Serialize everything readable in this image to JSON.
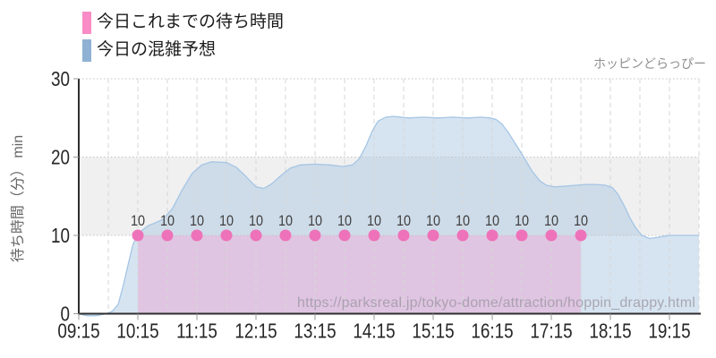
{
  "legend": {
    "items": [
      {
        "label": "今日これまでの待ち時間",
        "color": "#f98cc6"
      },
      {
        "label": "今日の混雑予想",
        "color": "#8fb1d4"
      }
    ]
  },
  "watermark": "ホッピンどらっぴー",
  "url_watermark": "https://parksreal.jp/tokyo-dome/attraction/hoppin_drappy.html",
  "y_axis": {
    "title": "待ち時間（分） min",
    "ticks": [
      0,
      10,
      20,
      30
    ]
  },
  "x_axis": {
    "tick_labels": [
      "09:15",
      "10:15",
      "11:15",
      "12:15",
      "13:15",
      "14:15",
      "15:15",
      "16:15",
      "17:15",
      "18:15",
      "19:15"
    ],
    "tick_minutes": [
      0,
      60,
      120,
      180,
      240,
      300,
      360,
      420,
      480,
      540,
      600
    ]
  },
  "chart_data": {
    "type": "area",
    "title": "",
    "xlabel": "",
    "ylabel": "待ち時間（分） min",
    "ylim": [
      0,
      30
    ],
    "xlim_minutes": [
      0,
      630
    ],
    "x_start_label": "09:15",
    "grid_interval_minutes": 30,
    "band": {
      "from": 10,
      "to": 20,
      "color": "#f0f0f0"
    },
    "colors": {
      "grid_h": "#c3c3c3",
      "grid_v": "#d6d6d6",
      "axis": "#2e2e2e",
      "tick": "#9a9a9a"
    },
    "series": [
      {
        "name": "今日の混雑予想",
        "kind": "area-line",
        "line_color": "#a5c5e5",
        "fill_color": "rgba(165,195,225,0.45)",
        "x_minutes": [
          0,
          8,
          18,
          28,
          34,
          40,
          45,
          50,
          55,
          60,
          70,
          85,
          95,
          105,
          115,
          125,
          135,
          150,
          160,
          170,
          180,
          188,
          196,
          205,
          215,
          225,
          240,
          255,
          268,
          278,
          285,
          292,
          298,
          304,
          312,
          320,
          335,
          350,
          365,
          380,
          395,
          408,
          418,
          424,
          430,
          437,
          444,
          452,
          460,
          468,
          475,
          483,
          495,
          505,
          515,
          525,
          535,
          542,
          548,
          554,
          560,
          566,
          572,
          580,
          590,
          600,
          615,
          630
        ],
        "values": [
          0,
          -0.25,
          -0.25,
          0,
          0.3,
          1.2,
          3.5,
          6.2,
          8.8,
          10.2,
          11.2,
          12.0,
          13.4,
          15.8,
          17.9,
          19.0,
          19.4,
          19.3,
          18.7,
          17.5,
          16.2,
          16.0,
          16.6,
          17.6,
          18.6,
          19.0,
          19.1,
          19.0,
          18.8,
          19.0,
          19.8,
          21.5,
          23.3,
          24.6,
          25.1,
          25.2,
          25.0,
          25.1,
          25.0,
          25.1,
          25.0,
          25.1,
          25.0,
          24.8,
          24.2,
          23.0,
          21.6,
          20.0,
          18.3,
          17.0,
          16.4,
          16.2,
          16.3,
          16.4,
          16.5,
          16.5,
          16.4,
          16.1,
          15.2,
          13.8,
          12.2,
          10.9,
          10.0,
          9.6,
          9.8,
          10.0,
          10.0,
          10.0
        ]
      },
      {
        "name": "今日これまでの待ち時間",
        "kind": "area-points",
        "point_color": "#ee72b9",
        "fill_color": "rgba(236,160,209,0.45)",
        "x_minutes": [
          60,
          90,
          120,
          150,
          180,
          210,
          240,
          270,
          300,
          330,
          360,
          390,
          420,
          450,
          480,
          510
        ],
        "values": [
          10,
          10,
          10,
          10,
          10,
          10,
          10,
          10,
          10,
          10,
          10,
          10,
          10,
          10,
          10,
          10
        ],
        "point_labels": [
          "10",
          "10",
          "10",
          "10",
          "10",
          "10",
          "10",
          "10",
          "10",
          "10",
          "10",
          "10",
          "10",
          "10",
          "10",
          "10"
        ]
      }
    ]
  }
}
